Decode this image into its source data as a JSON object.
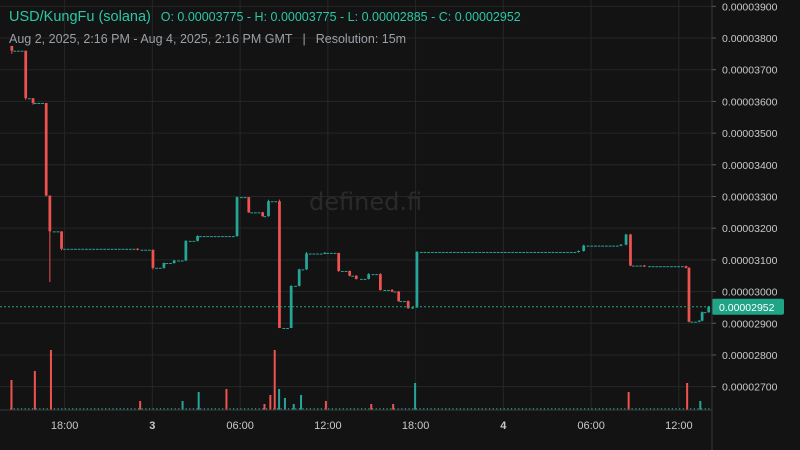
{
  "header": {
    "pair": "USD/KungFu (solana)",
    "ohlc": "O: 0.00003775 - H: 0.00003775 - L: 0.00002885 - C: 0.00002952",
    "range": "Aug 2, 2025, 2:16 PM - Aug 4, 2025, 2:16 PM GMT",
    "separator": "|",
    "resolution": "Resolution: 15m"
  },
  "watermark": "defined.fi",
  "colors": {
    "up": "#26a69a",
    "down": "#ef5350",
    "current_price": "#1fa585",
    "background": "#131313",
    "grid": "#262626"
  },
  "chart_data": {
    "type": "candlestick",
    "title": "USD/KungFu (solana)",
    "ylim": [
      2.62e-05,
      3.92e-05
    ],
    "y_ticks": [
      "0.00003900",
      "0.00003800",
      "0.00003700",
      "0.00003600",
      "0.00003500",
      "0.00003400",
      "0.00003300",
      "0.00003200",
      "0.00003100",
      "0.00003000",
      "0.00002900",
      "0.00002800",
      "0.00002700"
    ],
    "x_ticks": [
      {
        "label": "18:00",
        "t": 3.733
      },
      {
        "label": "3",
        "t": 9.733
      },
      {
        "label": "06:00",
        "t": 15.733
      },
      {
        "label": "12:00",
        "t": 21.733
      },
      {
        "label": "18:00",
        "t": 27.733
      },
      {
        "label": "4",
        "t": 33.733
      },
      {
        "label": "06:00",
        "t": 39.733
      },
      {
        "label": "12:00",
        "t": 45.733
      }
    ],
    "x_unit": "hours since Aug 2, 2025 2:16 PM GMT",
    "current_price": "0.00002952",
    "segments": [
      {
        "t0": 0.0,
        "t1": 0.2,
        "o": 3.775e-05,
        "c": 3.76e-05,
        "h": 3.775e-05,
        "l": 3.75e-05
      },
      {
        "t0": 0.2,
        "t1": 1.2,
        "o": 3.76e-05,
        "c": 3.61e-05,
        "h": 3.76e-05,
        "l": 3.605e-05
      },
      {
        "t0": 1.2,
        "t1": 1.6,
        "o": 3.61e-05,
        "c": 3.595e-05,
        "h": 3.61e-05,
        "l": 3.59e-05
      },
      {
        "t0": 1.6,
        "t1": 2.6,
        "o": 3.595e-05,
        "c": 3.303e-05,
        "h": 3.595e-05,
        "l": 3.3e-05
      },
      {
        "t0": 2.6,
        "t1": 2.9,
        "o": 3.303e-05,
        "c": 3.19e-05,
        "h": 3.303e-05,
        "l": 3.03e-05
      },
      {
        "t0": 2.9,
        "t1": 3.6,
        "o": 3.19e-05,
        "c": 3.135e-05,
        "h": 3.19e-05,
        "l": 3.13e-05
      },
      {
        "t0": 3.6,
        "t1": 8.9,
        "o": 3.135e-05,
        "c": 3.132e-05,
        "h": 3.137e-05,
        "l": 3.13e-05
      },
      {
        "t0": 8.9,
        "t1": 9.9,
        "o": 3.132e-05,
        "c": 3.075e-05,
        "h": 3.132e-05,
        "l": 3.07e-05
      },
      {
        "t0": 9.9,
        "t1": 10.6,
        "o": 3.075e-05,
        "c": 3.09e-05,
        "h": 3.092e-05,
        "l": 3.072e-05
      },
      {
        "t0": 10.6,
        "t1": 11.4,
        "o": 3.09e-05,
        "c": 3.098e-05,
        "h": 3.1e-05,
        "l": 3.088e-05
      },
      {
        "t0": 11.4,
        "t1": 12.2,
        "o": 3.098e-05,
        "c": 3.16e-05,
        "h": 3.162e-05,
        "l": 3.096e-05
      },
      {
        "t0": 12.2,
        "t1": 12.9,
        "o": 3.16e-05,
        "c": 3.175e-05,
        "h": 3.178e-05,
        "l": 3.158e-05
      },
      {
        "t0": 12.9,
        "t1": 15.7,
        "o": 3.175e-05,
        "c": 3.298e-05,
        "h": 3.3e-05,
        "l": 3.173e-05
      },
      {
        "t0": 15.7,
        "t1": 16.4,
        "o": 3.298e-05,
        "c": 3.25e-05,
        "h": 3.298e-05,
        "l": 3.248e-05
      },
      {
        "t0": 16.4,
        "t1": 17.3,
        "o": 3.25e-05,
        "c": 3.238e-05,
        "h": 3.252e-05,
        "l": 3.236e-05
      },
      {
        "t0": 17.3,
        "t1": 17.8,
        "o": 3.238e-05,
        "c": 3.285e-05,
        "h": 3.29e-05,
        "l": 3.236e-05
      },
      {
        "t0": 17.8,
        "t1": 18.6,
        "o": 3.285e-05,
        "c": 2.885e-05,
        "h": 3.29e-05,
        "l": 2.885e-05
      },
      {
        "t0": 18.6,
        "t1": 19.4,
        "o": 2.885e-05,
        "c": 3.018e-05,
        "h": 3.02e-05,
        "l": 2.885e-05
      },
      {
        "t0": 19.4,
        "t1": 19.9,
        "o": 3.018e-05,
        "c": 3.07e-05,
        "h": 3.072e-05,
        "l": 3.016e-05
      },
      {
        "t0": 19.9,
        "t1": 20.4,
        "o": 3.07e-05,
        "c": 3.12e-05,
        "h": 3.125e-05,
        "l": 3.068e-05
      },
      {
        "t0": 20.4,
        "t1": 21.6,
        "o": 3.12e-05,
        "c": 3.122e-05,
        "h": 3.125e-05,
        "l": 3.118e-05
      },
      {
        "t0": 21.6,
        "t1": 22.6,
        "o": 3.122e-05,
        "c": 3.065e-05,
        "h": 3.122e-05,
        "l": 3.062e-05
      },
      {
        "t0": 22.6,
        "t1": 23.3,
        "o": 3.065e-05,
        "c": 3.05e-05,
        "h": 3.066e-05,
        "l": 3.048e-05
      },
      {
        "t0": 23.3,
        "t1": 23.9,
        "o": 3.05e-05,
        "c": 3.04e-05,
        "h": 3.052e-05,
        "l": 3.038e-05
      },
      {
        "t0": 23.9,
        "t1": 24.7,
        "o": 3.04e-05,
        "c": 3.055e-05,
        "h": 3.058e-05,
        "l": 3.038e-05
      },
      {
        "t0": 24.7,
        "t1": 25.5,
        "o": 3.055e-05,
        "c": 3.005e-05,
        "h": 3.058e-05,
        "l": 3.003e-05
      },
      {
        "t0": 25.5,
        "t1": 26.2,
        "o": 3.005e-05,
        "c": 3e-05,
        "h": 3.008e-05,
        "l": 2.998e-05
      },
      {
        "t0": 26.2,
        "t1": 26.6,
        "o": 3e-05,
        "c": 2.97e-05,
        "h": 3.002e-05,
        "l": 2.968e-05
      },
      {
        "t0": 26.6,
        "t1": 27.4,
        "o": 2.97e-05,
        "c": 2.948e-05,
        "h": 2.972e-05,
        "l": 2.945e-05
      },
      {
        "t0": 27.4,
        "t1": 27.7,
        "o": 2.948e-05,
        "c": 2.95e-05,
        "h": 2.952e-05,
        "l": 2.945e-05
      },
      {
        "t0": 27.7,
        "t1": 28.0,
        "o": 2.95e-05,
        "c": 3.125e-05,
        "h": 3.128e-05,
        "l": 2.948e-05
      },
      {
        "t0": 28.0,
        "t1": 39.1,
        "o": 3.125e-05,
        "c": 3.128e-05,
        "h": 3.13e-05,
        "l": 3.123e-05
      },
      {
        "t0": 39.1,
        "t1": 39.4,
        "o": 3.128e-05,
        "c": 3.145e-05,
        "h": 3.148e-05,
        "l": 3.126e-05
      },
      {
        "t0": 39.4,
        "t1": 42.0,
        "o": 3.145e-05,
        "c": 3.148e-05,
        "h": 3.15e-05,
        "l": 3.143e-05
      },
      {
        "t0": 42.0,
        "t1": 42.3,
        "o": 3.148e-05,
        "c": 3.18e-05,
        "h": 3.182e-05,
        "l": 3.146e-05
      },
      {
        "t0": 42.3,
        "t1": 42.5,
        "o": 3.18e-05,
        "c": 3.082e-05,
        "h": 3.182e-05,
        "l": 3.08e-05
      },
      {
        "t0": 42.5,
        "t1": 43.6,
        "o": 3.082e-05,
        "c": 3.08e-05,
        "h": 3.084e-05,
        "l": 3.078e-05
      },
      {
        "t0": 43.6,
        "t1": 46.3,
        "o": 3.08e-05,
        "c": 3.075e-05,
        "h": 3.082e-05,
        "l": 3.073e-05
      },
      {
        "t0": 46.3,
        "t1": 46.5,
        "o": 3.075e-05,
        "c": 2.905e-05,
        "h": 3.077e-05,
        "l": 2.903e-05
      },
      {
        "t0": 46.5,
        "t1": 47.2,
        "o": 2.905e-05,
        "c": 2.908e-05,
        "h": 2.91e-05,
        "l": 2.903e-05
      },
      {
        "t0": 47.2,
        "t1": 47.4,
        "o": 2.908e-05,
        "c": 2.935e-05,
        "h": 2.937e-05,
        "l": 2.906e-05
      },
      {
        "t0": 47.4,
        "t1": 48.0,
        "o": 2.935e-05,
        "c": 2.952e-05,
        "h": 2.955e-05,
        "l": 2.933e-05
      }
    ],
    "volume": [
      {
        "t": 0.1,
        "v": 0.1,
        "up": false
      },
      {
        "t": 1.7,
        "v": 0.13,
        "up": false
      },
      {
        "t": 2.8,
        "v": 0.2,
        "up": false
      },
      {
        "t": 8.9,
        "v": 0.03,
        "up": false
      },
      {
        "t": 11.8,
        "v": 0.03,
        "up": true
      },
      {
        "t": 12.9,
        "v": 0.06,
        "up": true
      },
      {
        "t": 14.8,
        "v": 0.07,
        "up": false
      },
      {
        "t": 17.4,
        "v": 0.02,
        "up": false
      },
      {
        "t": 17.8,
        "v": 0.05,
        "up": false
      },
      {
        "t": 18.1,
        "v": 0.2,
        "up": false
      },
      {
        "t": 18.4,
        "v": 0.07,
        "up": true
      },
      {
        "t": 18.8,
        "v": 0.04,
        "up": true
      },
      {
        "t": 19.4,
        "v": 0.02,
        "up": true
      },
      {
        "t": 19.9,
        "v": 0.05,
        "up": true
      },
      {
        "t": 21.6,
        "v": 0.03,
        "up": false
      },
      {
        "t": 24.7,
        "v": 0.02,
        "up": false
      },
      {
        "t": 26.2,
        "v": 0.02,
        "up": false
      },
      {
        "t": 27.7,
        "v": 0.09,
        "up": true
      },
      {
        "t": 42.3,
        "v": 0.06,
        "up": false
      },
      {
        "t": 46.3,
        "v": 0.09,
        "up": false
      },
      {
        "t": 47.2,
        "v": 0.03,
        "up": true
      }
    ]
  }
}
